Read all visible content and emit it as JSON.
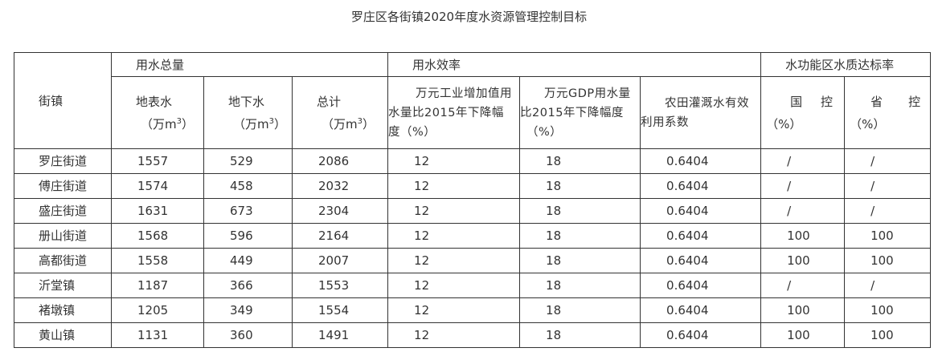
{
  "title": "罗庄区各街镇2020年度水资源管理控制目标",
  "headers": {
    "street": "街镇",
    "water_total": "用水总量",
    "water_efficiency": "用水效率",
    "water_function": "水功能区水质达标率",
    "surface": "地表水",
    "underground": "地下水",
    "total": "总计",
    "unit_prefix": "（万m",
    "unit_sup": "3",
    "unit_suffix": "）",
    "industry_line1": "万元工业增加值用",
    "industry_line2": "水量比2015年下降幅",
    "industry_line3": "度（%）",
    "gdp_line1": "万元GDP用水量",
    "gdp_line2": "比2015年下降幅度",
    "gdp_line3": "（%）",
    "farm_line1": "农田灌溉水有效",
    "farm_line2": "利用系数",
    "national_a": "国",
    "national_b": "控",
    "provincial_a": "省",
    "provincial_b": "控",
    "percent": "（%）"
  },
  "rows": [
    {
      "street": "罗庄街道",
      "surface": "1557",
      "underground": "529",
      "total": "2086",
      "industry": "12",
      "gdp": "18",
      "farm": "0.6404",
      "national": "/",
      "provincial": "/"
    },
    {
      "street": "傅庄街道",
      "surface": "1574",
      "underground": "458",
      "total": "2032",
      "industry": "12",
      "gdp": "18",
      "farm": "0.6404",
      "national": "/",
      "provincial": "/"
    },
    {
      "street": "盛庄街道",
      "surface": "1631",
      "underground": "673",
      "total": "2304",
      "industry": "12",
      "gdp": "18",
      "farm": "0.6404",
      "national": "/",
      "provincial": "/"
    },
    {
      "street": "册山街道",
      "surface": "1568",
      "underground": "596",
      "total": "2164",
      "industry": "12",
      "gdp": "18",
      "farm": "0.6404",
      "national": "100",
      "provincial": "100"
    },
    {
      "street": "高都街道",
      "surface": "1558",
      "underground": "449",
      "total": "2007",
      "industry": "12",
      "gdp": "18",
      "farm": "0.6404",
      "national": "100",
      "provincial": "100"
    },
    {
      "street": "沂堂镇",
      "surface": "1187",
      "underground": "366",
      "total": "1553",
      "industry": "12",
      "gdp": "18",
      "farm": "0.6404",
      "national": "/",
      "provincial": "/"
    },
    {
      "street": "褚墩镇",
      "surface": "1205",
      "underground": "349",
      "total": "1554",
      "industry": "12",
      "gdp": "18",
      "farm": "0.6404",
      "national": "100",
      "provincial": "100"
    },
    {
      "street": "黄山镇",
      "surface": "1131",
      "underground": "360",
      "total": "1491",
      "industry": "12",
      "gdp": "18",
      "farm": "0.6404",
      "national": "100",
      "provincial": "100"
    }
  ]
}
